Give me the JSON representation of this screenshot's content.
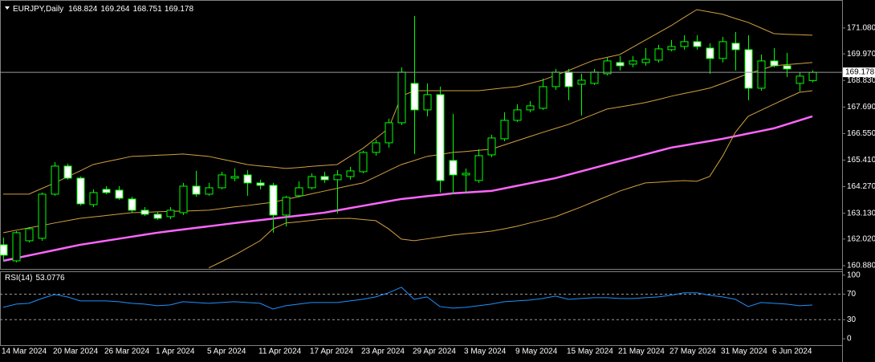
{
  "chart_data": [
    {
      "type": "candlestick",
      "title": "EURJPY,Daily",
      "categories": [
        "14 Mar 2024",
        null,
        null,
        null,
        "20 Mar 2024",
        null,
        null,
        null,
        "26 Mar 2024",
        null,
        null,
        null,
        "1 Apr 2024",
        null,
        null,
        null,
        "5 Apr 2024",
        null,
        null,
        null,
        "11 Apr 2024",
        null,
        null,
        null,
        "17 Apr 2024",
        null,
        null,
        null,
        "23 Apr 2024",
        null,
        null,
        null,
        "29 Apr 2024",
        null,
        null,
        null,
        "3 May 2024",
        null,
        null,
        null,
        "9 May 2024",
        null,
        null,
        null,
        "15 May 2024",
        null,
        null,
        null,
        "21 May 2024",
        null,
        null,
        null,
        "27 May 2024",
        null,
        null,
        null,
        "31 May 2024",
        null,
        null,
        null,
        "6 Jun 2024",
        null,
        null,
        null
      ],
      "open": [
        161.776,
        161.087,
        161.948,
        162.052,
        163.947,
        165.153,
        164.636,
        163.499,
        164.154,
        164.119,
        163.74,
        163.257,
        163.085,
        162.982,
        163.154,
        164.291,
        163.947,
        164.222,
        164.636,
        164.774,
        164.429,
        164.326,
        163.051,
        163.878,
        164.222,
        164.705,
        164.567,
        164.705,
        164.912,
        165.739,
        166.152,
        167.014,
        168.702,
        167.565,
        168.22,
        165.394,
        164.774,
        164.533,
        165.635,
        166.324,
        167.117,
        167.565,
        167.634,
        168.564,
        169.185,
        168.668,
        168.702,
        169.116,
        169.598,
        169.529,
        169.598,
        169.702,
        170.15,
        170.287,
        170.494,
        170.218,
        169.771,
        170.425,
        170.15,
        168.496,
        169.667,
        169.46,
        168.702,
        168.824
      ],
      "high": [
        162.086,
        162.362,
        162.534,
        164.016,
        165.325,
        165.256,
        164.705,
        164.154,
        164.291,
        164.291,
        163.843,
        163.395,
        163.189,
        163.395,
        164.429,
        164.946,
        164.429,
        164.912,
        165.05,
        164.981,
        164.567,
        164.429,
        163.878,
        164.498,
        164.843,
        164.912,
        164.981,
        165.118,
        165.808,
        166.29,
        167.186,
        169.391,
        171.597,
        168.702,
        168.564,
        167.393,
        165.05,
        165.877,
        166.497,
        167.462,
        167.806,
        167.944,
        168.909,
        169.323,
        169.323,
        169.116,
        169.323,
        169.805,
        169.874,
        169.874,
        170.218,
        170.356,
        170.563,
        170.77,
        170.77,
        170.425,
        170.701,
        170.908,
        170.77,
        169.943,
        170.218,
        170.012,
        169.185,
        169.264
      ],
      "low": [
        161.087,
        161.018,
        161.879,
        161.948,
        163.878,
        164.567,
        163.464,
        163.395,
        163.947,
        163.706,
        163.154,
        163.016,
        162.844,
        162.878,
        163.051,
        163.843,
        163.878,
        164.154,
        164.498,
        163.878,
        164.154,
        162.293,
        162.568,
        163.809,
        164.154,
        164.429,
        163.12,
        164.567,
        164.843,
        165.601,
        165.945,
        166.91,
        165.67,
        167.289,
        164.016,
        163.947,
        164.016,
        164.429,
        165.532,
        166.221,
        167.048,
        167.462,
        167.565,
        168.427,
        167.979,
        167.324,
        168.633,
        169.047,
        169.254,
        169.391,
        169.46,
        169.598,
        170.081,
        170.15,
        170.15,
        169.116,
        169.598,
        169.254,
        167.979,
        168.392,
        169.391,
        168.978,
        168.358,
        168.751
      ],
      "close": [
        161.328,
        162.293,
        162.465,
        163.947,
        165.153,
        164.636,
        163.533,
        164.016,
        164.016,
        163.774,
        163.257,
        163.085,
        162.913,
        163.257,
        164.291,
        163.947,
        164.222,
        164.774,
        164.705,
        164.429,
        164.326,
        163.051,
        163.809,
        164.222,
        164.705,
        164.567,
        164.774,
        164.946,
        165.739,
        166.152,
        167.014,
        169.185,
        167.565,
        168.22,
        164.533,
        164.774,
        164.843,
        165.601,
        166.359,
        167.117,
        167.565,
        167.737,
        168.564,
        169.185,
        168.564,
        168.84,
        169.185,
        169.667,
        169.46,
        169.667,
        169.736,
        170.184,
        170.287,
        170.494,
        170.287,
        169.771,
        170.494,
        170.15,
        168.496,
        169.667,
        169.46,
        169.323,
        169.013,
        169.178
      ],
      "bull_color": "#000000",
      "bear_color": "#ffffff",
      "wick_color": "#00ff00",
      "overlays": [
        {
          "color": "#ff66ff",
          "width": 2.5,
          "values": [
            161.087,
            161.2,
            161.317,
            161.431,
            161.545,
            161.662,
            161.776,
            161.862,
            161.948,
            162.034,
            162.12,
            162.207,
            162.293,
            162.362,
            162.431,
            162.5,
            162.568,
            162.637,
            162.706,
            162.772,
            162.834,
            162.899,
            162.961,
            163.027,
            163.089,
            163.154,
            163.251,
            163.351,
            163.447,
            163.544,
            163.644,
            163.74,
            163.799,
            163.861,
            163.919,
            163.981,
            164.016,
            164.05,
            164.085,
            164.195,
            164.305,
            164.416,
            164.526,
            164.636,
            164.781,
            164.929,
            165.074,
            165.222,
            165.367,
            165.511,
            165.656,
            165.801,
            165.945,
            166.038,
            166.135,
            166.228,
            166.324,
            166.435,
            166.549,
            166.659,
            166.773,
            166.945,
            167.117,
            167.29
          ]
        },
        {
          "color": "#d2a040",
          "width": 1,
          "values": [
            163.95,
            163.95,
            163.95,
            164.19,
            164.43,
            164.69,
            164.95,
            165.22,
            165.34,
            165.45,
            165.57,
            165.59,
            165.62,
            165.64,
            165.67,
            165.62,
            165.57,
            165.45,
            165.34,
            165.22,
            165.16,
            165.11,
            165.05,
            165.09,
            165.14,
            165.18,
            165.22,
            165.57,
            165.91,
            166.34,
            166.77,
            168.15,
            168.39,
            168.39,
            168.39,
            168.39,
            168.39,
            168.39,
            168.45,
            168.51,
            168.56,
            168.7,
            168.84,
            169.05,
            169.25,
            169.48,
            169.7,
            169.82,
            169.94,
            170.25,
            170.56,
            170.87,
            171.18,
            171.53,
            171.87,
            171.77,
            171.67,
            171.49,
            171.32,
            171.08,
            170.84,
            170.81,
            170.79,
            170.77
          ]
        },
        {
          "color": "#d2a040",
          "width": 1,
          "values": [
            162.29,
            162.4,
            162.5,
            162.6,
            162.71,
            162.81,
            162.91,
            162.97,
            163.03,
            163.09,
            163.15,
            163.17,
            163.19,
            163.21,
            163.22,
            163.24,
            163.26,
            163.33,
            163.4,
            163.46,
            163.53,
            163.6,
            163.72,
            163.84,
            163.96,
            164.08,
            164.2,
            164.32,
            164.43,
            164.69,
            164.96,
            165.22,
            165.39,
            165.57,
            165.65,
            165.74,
            165.78,
            165.83,
            165.88,
            166.06,
            166.24,
            166.42,
            166.6,
            166.77,
            166.94,
            167.16,
            167.38,
            167.6,
            167.69,
            167.78,
            167.88,
            168.01,
            168.15,
            168.27,
            168.38,
            168.5,
            168.7,
            168.91,
            169.12,
            169.29,
            169.46,
            169.51,
            169.55,
            169.6
          ]
        },
        {
          "color": "#d2a040",
          "width": 1,
          "values": [
            null,
            null,
            null,
            null,
            null,
            null,
            null,
            null,
            null,
            null,
            null,
            null,
            null,
            null,
            null,
            null,
            160.78,
            161.05,
            161.33,
            161.64,
            161.95,
            162.46,
            162.71,
            162.76,
            162.82,
            162.88,
            162.9,
            162.91,
            162.86,
            162.81,
            162.46,
            162.02,
            161.95,
            162.03,
            162.11,
            162.19,
            162.25,
            162.3,
            162.36,
            162.46,
            162.57,
            162.71,
            162.84,
            162.98,
            163.19,
            163.4,
            163.63,
            163.85,
            164.08,
            164.26,
            164.43,
            164.46,
            164.5,
            164.53,
            164.5,
            164.71,
            165.57,
            166.6,
            167.29,
            167.55,
            167.81,
            168.07,
            168.32,
            168.39
          ]
        }
      ],
      "ylim": [
        160.74,
        172.11
      ],
      "yticks": [
        {
          "value": 171.08,
          "label": "171.080"
        },
        {
          "value": 169.97,
          "label": "169.970"
        },
        {
          "value": 168.83,
          "label": "168.830"
        },
        {
          "value": 167.69,
          "label": "167.690"
        },
        {
          "value": 166.55,
          "label": "166.550"
        },
        {
          "value": 165.41,
          "label": "165.410"
        },
        {
          "value": 164.27,
          "label": "164.270"
        },
        {
          "value": 163.13,
          "label": "163.130"
        },
        {
          "value": 162.02,
          "label": "162.020"
        },
        {
          "value": 160.88,
          "label": "160.880"
        }
      ]
    },
    {
      "type": "line",
      "title": "RSI(14)",
      "color": "#1e90ff",
      "values": [
        49.4,
        54.4,
        55.7,
        63.3,
        69.6,
        65.8,
        59.5,
        59.5,
        59.5,
        58.2,
        55.7,
        54.4,
        51.9,
        53.2,
        58.2,
        57.0,
        55.7,
        57.0,
        58.2,
        57.0,
        55.7,
        46.8,
        51.9,
        54.4,
        57.0,
        57.0,
        57.0,
        59.5,
        62.0,
        65.8,
        72.2,
        81.0,
        62.0,
        65.8,
        50.6,
        48.1,
        49.4,
        51.9,
        54.4,
        58.2,
        59.5,
        60.8,
        63.3,
        67.1,
        62.0,
        63.3,
        64.6,
        64.6,
        63.3,
        63.3,
        64.6,
        65.8,
        68.4,
        72.2,
        72.2,
        68.4,
        65.8,
        62.0,
        50.6,
        57.0,
        55.7,
        54.4,
        51.9,
        53.0776
      ],
      "ylim": [
        -10,
        106
      ],
      "yticks": [
        100,
        70,
        30,
        0
      ],
      "levels": [
        70,
        30
      ]
    }
  ]
}
